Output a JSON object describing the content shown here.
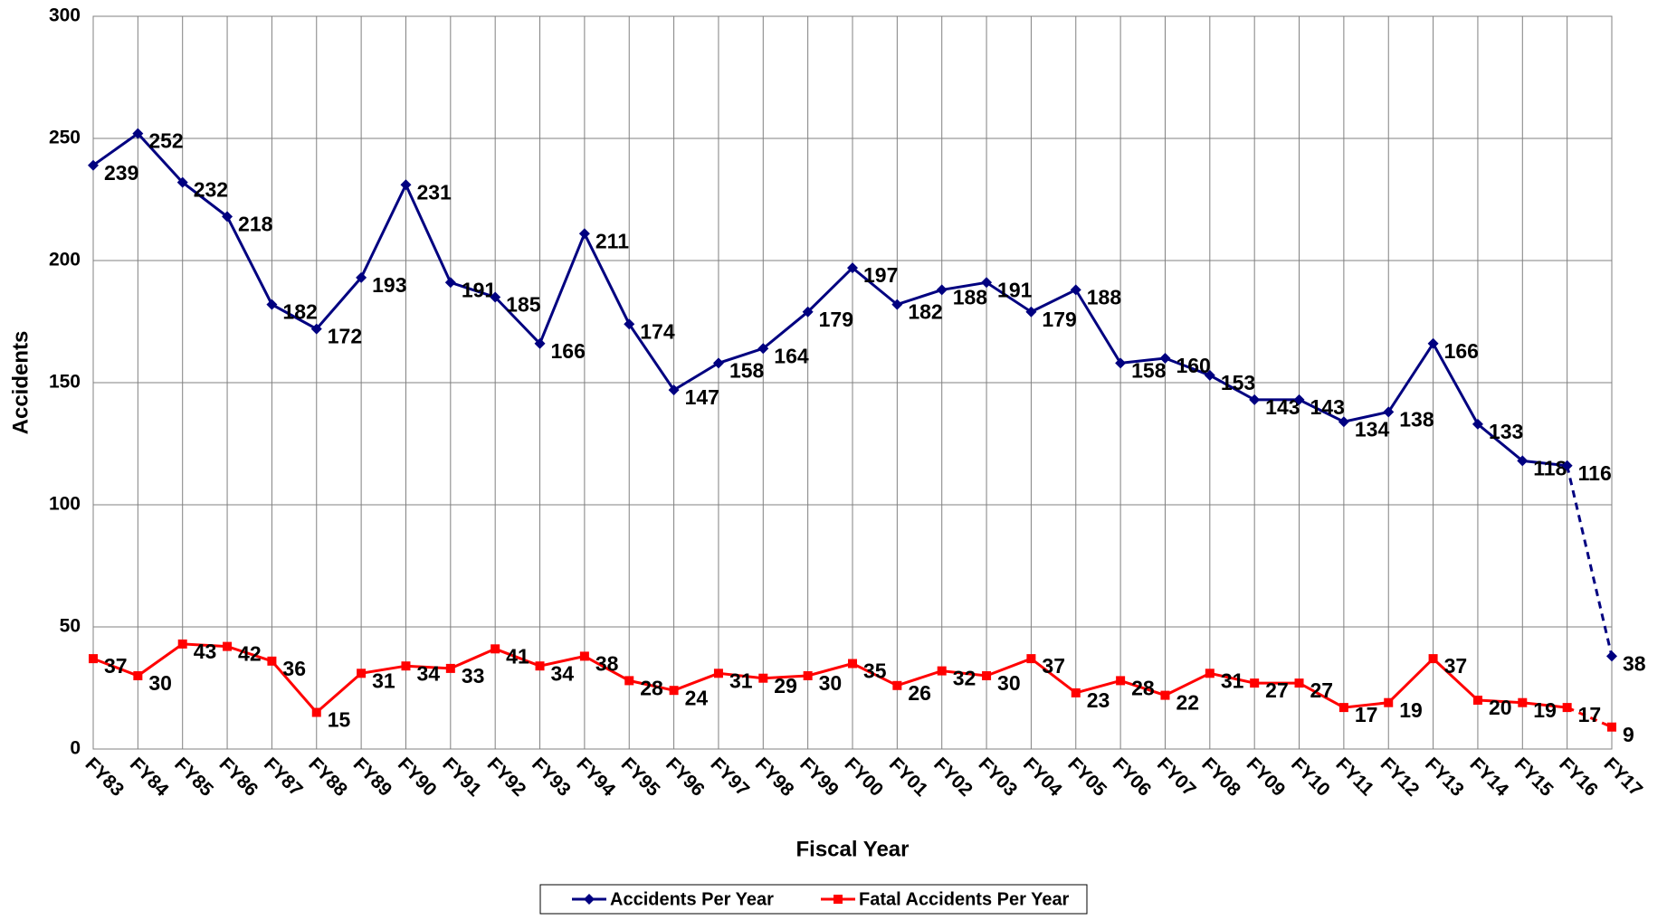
{
  "chart_data": {
    "type": "line",
    "x_label": "Fiscal Year",
    "y_label": "Accidents",
    "categories": [
      "FY83",
      "FY84",
      "FY85",
      "FY86",
      "FY87",
      "FY88",
      "FY89",
      "FY90",
      "FY91",
      "FY92",
      "FY93",
      "FY94",
      "FY95",
      "FY96",
      "FY97",
      "FY98",
      "FY99",
      "FY00",
      "FY01",
      "FY02",
      "FY03",
      "FY04",
      "FY05",
      "FY06",
      "FY07",
      "FY08",
      "FY09",
      "FY10",
      "FY11",
      "FY12",
      "FY13",
      "FY14",
      "FY15",
      "FY16",
      "FY17"
    ],
    "series": [
      {
        "name": "Accidents Per Year",
        "color": "#000080",
        "marker": "diamond",
        "dashed_last_segment": true,
        "values": [
          239,
          252,
          232,
          218,
          182,
          172,
          193,
          231,
          191,
          185,
          166,
          211,
          174,
          147,
          158,
          164,
          179,
          197,
          182,
          188,
          191,
          179,
          188,
          158,
          160,
          153,
          143,
          143,
          134,
          138,
          166,
          133,
          118,
          116,
          38
        ]
      },
      {
        "name": "Fatal Accidents Per Year",
        "color": "#ff0000",
        "marker": "square",
        "dashed_last_segment": true,
        "values": [
          37,
          30,
          43,
          42,
          36,
          15,
          31,
          34,
          33,
          41,
          34,
          38,
          28,
          24,
          31,
          29,
          30,
          35,
          26,
          32,
          30,
          37,
          23,
          28,
          22,
          31,
          27,
          27,
          17,
          19,
          37,
          20,
          19,
          17,
          9
        ]
      }
    ],
    "ylim": [
      0,
      300
    ],
    "yticks": [
      0,
      50,
      100,
      150,
      200,
      250,
      300
    ],
    "grid": true,
    "legend": "bottom"
  }
}
